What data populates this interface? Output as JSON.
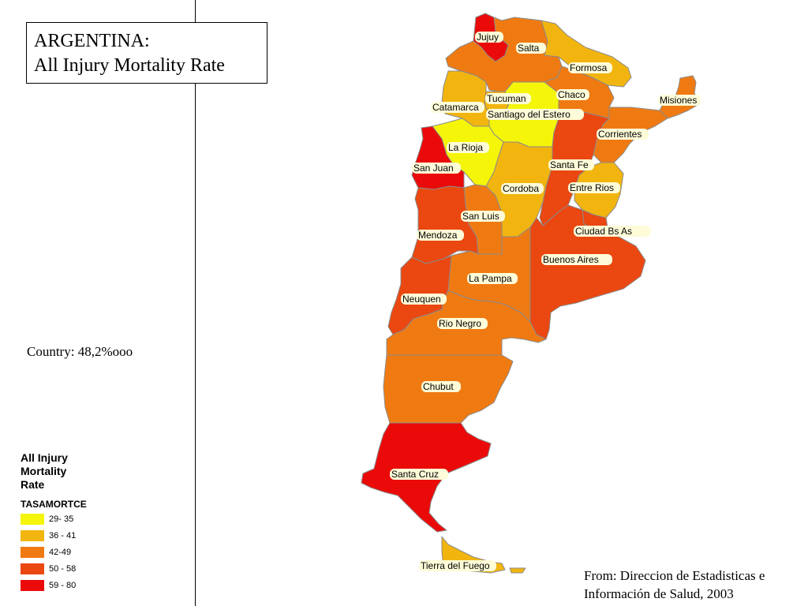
{
  "title": {
    "line1": "ARGENTINA:",
    "line2": "All Injury Mortality Rate"
  },
  "country_rate": "Country: 48,2%ooo",
  "legend": {
    "title": "All Injury Mortality Rate",
    "field": "TASAMORTCE",
    "classes": [
      {
        "label": "29- 35",
        "color": "#f5f50a"
      },
      {
        "label": "36 - 41",
        "color": "#f2b50f"
      },
      {
        "label": "42-49",
        "color": "#f07a12"
      },
      {
        "label": "50 - 58",
        "color": "#eb4710"
      },
      {
        "label": "59 - 80",
        "color": "#eb0a0a"
      }
    ]
  },
  "source": {
    "line1": "From: Direccion de Estadisticas e",
    "line2": "Información de Salud, 2003"
  },
  "provinces": [
    {
      "name": "Jujuy",
      "rate_class": "59 - 80"
    },
    {
      "name": "Salta",
      "rate_class": "42-49"
    },
    {
      "name": "Formosa",
      "rate_class": "36 - 41"
    },
    {
      "name": "Misiones",
      "rate_class": "42-49"
    },
    {
      "name": "Chaco",
      "rate_class": "42-49"
    },
    {
      "name": "Tucuman",
      "rate_class": "36 - 41"
    },
    {
      "name": "Catamarca",
      "rate_class": "36 - 41"
    },
    {
      "name": "Santiago del Estero",
      "rate_class": "29- 35"
    },
    {
      "name": "Corrientes",
      "rate_class": "42-49"
    },
    {
      "name": "La Rioja",
      "rate_class": "29- 35"
    },
    {
      "name": "San Juan",
      "rate_class": "59 - 80"
    },
    {
      "name": "Santa Fe",
      "rate_class": "50 - 58"
    },
    {
      "name": "Cordoba",
      "rate_class": "36 - 41"
    },
    {
      "name": "Entre Rios",
      "rate_class": "36 - 41"
    },
    {
      "name": "San Luis",
      "rate_class": "42-49"
    },
    {
      "name": "Ciudad Bs As",
      "rate_class": "50 - 58"
    },
    {
      "name": "Mendoza",
      "rate_class": "50 - 58"
    },
    {
      "name": "Buenos Aires",
      "rate_class": "50 - 58"
    },
    {
      "name": "La Pampa",
      "rate_class": "42-49"
    },
    {
      "name": "Neuquen",
      "rate_class": "50 - 58"
    },
    {
      "name": "Rio Negro",
      "rate_class": "42-49"
    },
    {
      "name": "Chubut",
      "rate_class": "42-49"
    },
    {
      "name": "Santa Cruz",
      "rate_class": "59 - 80"
    },
    {
      "name": "Tierra del Fuego",
      "rate_class": "36 - 41"
    }
  ]
}
